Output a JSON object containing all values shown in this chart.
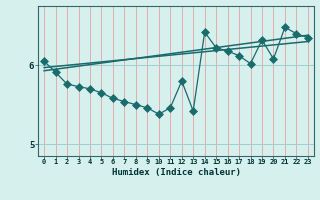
{
  "xlabel": "Humidex (Indice chaleur)",
  "bg_color": "#d6f0ee",
  "line_color": "#1a6b6b",
  "grid_color_v": "#e8a0a0",
  "grid_color_h": "#9ccfcf",
  "xlim": [
    -0.5,
    23.5
  ],
  "ylim": [
    4.85,
    6.75
  ],
  "yticks": [
    5,
    6
  ],
  "xticks": [
    0,
    1,
    2,
    3,
    4,
    5,
    6,
    7,
    8,
    9,
    10,
    11,
    12,
    13,
    14,
    15,
    16,
    17,
    18,
    19,
    20,
    21,
    22,
    23
  ],
  "zigzag_x": [
    0,
    1,
    2,
    3,
    4,
    5,
    6,
    7,
    8,
    9,
    10,
    11,
    12,
    13,
    14,
    15,
    16,
    17,
    18,
    19,
    20,
    21,
    22,
    23
  ],
  "zigzag_y": [
    6.05,
    5.91,
    5.76,
    5.73,
    5.7,
    5.65,
    5.58,
    5.54,
    5.5,
    5.46,
    5.38,
    5.46,
    5.8,
    5.42,
    6.42,
    6.22,
    6.18,
    6.12,
    6.02,
    6.32,
    6.08,
    6.48,
    6.4,
    6.35
  ],
  "trend1_x": [
    0,
    23
  ],
  "trend1_y": [
    5.93,
    6.38
  ],
  "trend2_x": [
    0,
    23
  ],
  "trend2_y": [
    5.97,
    6.3
  ],
  "marker_size": 4
}
